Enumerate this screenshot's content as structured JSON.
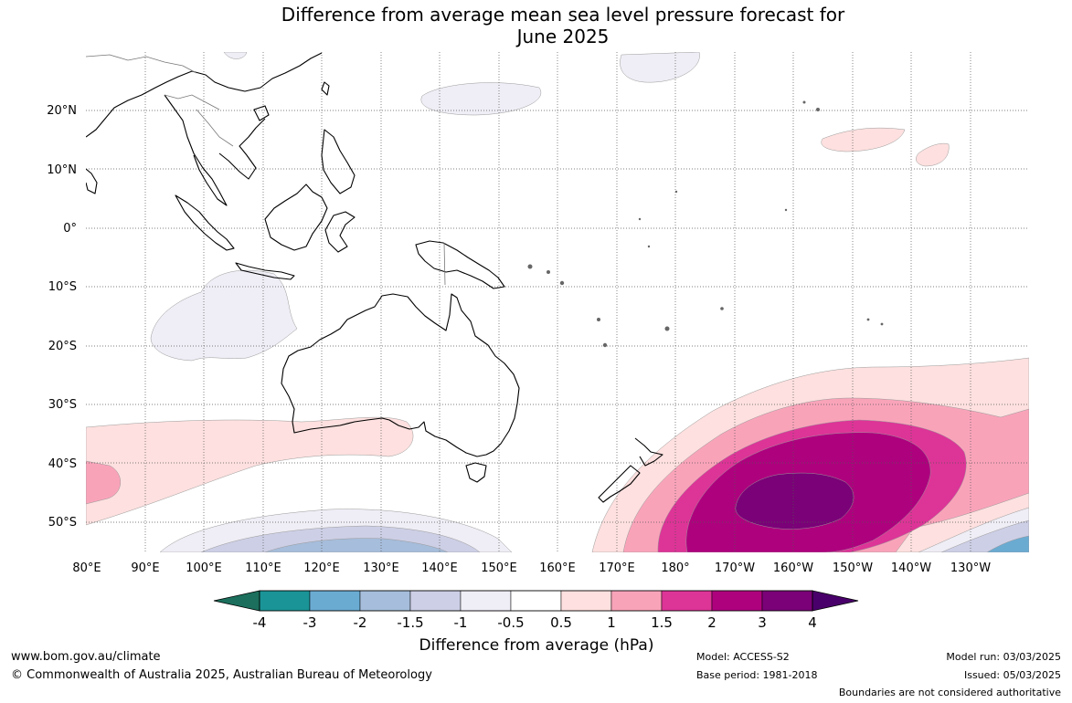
{
  "title_line1": "Difference from average mean sea level pressure forecast for",
  "title_line2": "June 2025",
  "axes": {
    "lat_labels": [
      "20°N",
      "10°N",
      "0°",
      "10°S",
      "20°S",
      "30°S",
      "40°S",
      "50°S"
    ],
    "lon_labels": [
      "80°E",
      "90°E",
      "100°E",
      "110°E",
      "120°E",
      "130°E",
      "140°E",
      "150°E",
      "160°E",
      "170°E",
      "180°",
      "170°W",
      "160°W",
      "150°W",
      "140°W",
      "130°W"
    ]
  },
  "colorbar": {
    "title": "Difference from average (hPa)",
    "ticks": [
      "-4",
      "-3",
      "-2",
      "-1.5",
      "-1",
      "-0.5",
      "0.5",
      "1",
      "1.5",
      "2",
      "3",
      "4"
    ],
    "colors": [
      "#1a9496",
      "#6aabd2",
      "#a6bddb",
      "#cdcfe6",
      "#efedf5",
      "#ffffff",
      "#fde0df",
      "#f9a3b9",
      "#dd3497",
      "#ae017e",
      "#7a0177"
    ],
    "extend_low_color": "#1b6f5c",
    "extend_high_color": "#49006a"
  },
  "footer": {
    "website": "www.bom.gov.au/climate",
    "copyright": "© Commonwealth of Australia 2025, Australian Bureau of Meteorology",
    "model": "Model: ACCESS-S2",
    "base_period": "Base period: 1981-2018",
    "model_run": "Model run: 03/03/2025",
    "issued": "Issued: 05/03/2025",
    "disclaimer": "Boundaries are not considered authoritative"
  }
}
